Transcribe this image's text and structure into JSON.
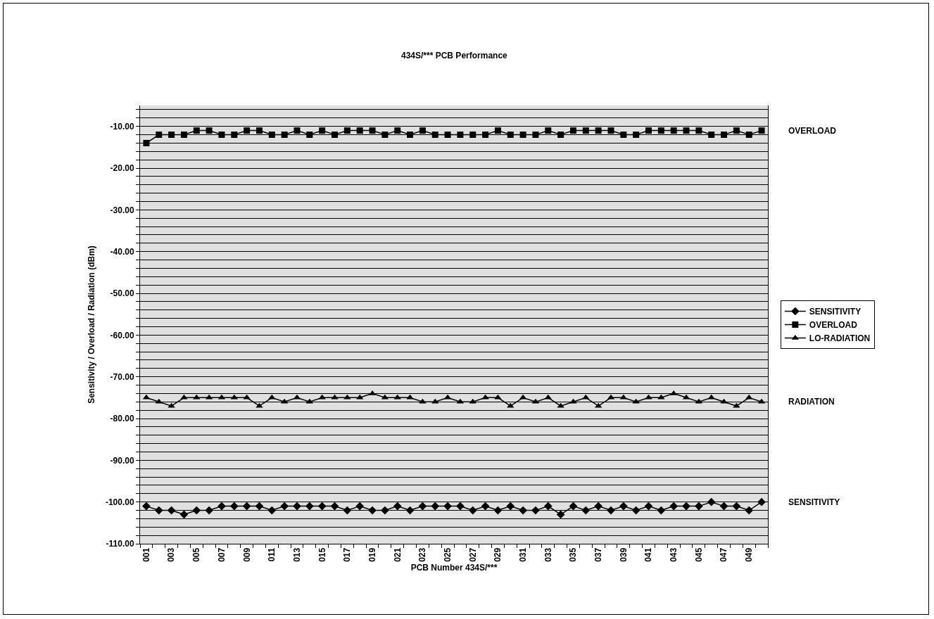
{
  "chart_data": {
    "type": "line",
    "title": "434S/*** PCB Performance",
    "xlabel": "PCB Number 434S/***",
    "ylabel": "Sensitivity / Overload / Radiation (dBm)",
    "categories": [
      "001",
      null,
      "003",
      null,
      "005",
      null,
      "007",
      null,
      "009",
      null,
      "011",
      null,
      "013",
      null,
      "015",
      null,
      "017",
      null,
      "019",
      null,
      "021",
      null,
      "023",
      null,
      "025",
      null,
      "027",
      null,
      "029",
      null,
      "031",
      null,
      "033",
      null,
      "035",
      null,
      "037",
      null,
      "039",
      null,
      "041",
      null,
      "043",
      null,
      "045",
      null,
      "047",
      null,
      "049",
      null
    ],
    "series": [
      {
        "name": "SENSITIVITY",
        "color": "#000000",
        "marker": "diamond",
        "values": [
          -101,
          -102,
          -102,
          -103,
          -102,
          -102,
          -101,
          -101,
          -101,
          -101,
          -102,
          -101,
          -101,
          -101,
          -101,
          -101,
          -102,
          -101,
          -102,
          -102,
          -101,
          -102,
          -101,
          -101,
          -101,
          -101,
          -102,
          -101,
          -102,
          -101,
          -102,
          -102,
          -101,
          -103,
          -101,
          -102,
          -101,
          -102,
          -101,
          -102,
          -101,
          -102,
          -101,
          -101,
          -101,
          -100,
          -101,
          -101,
          -102,
          -100
        ]
      },
      {
        "name": "OVERLOAD",
        "color": "#000000",
        "marker": "square",
        "values": [
          -14,
          -12,
          -12,
          -12,
          -11,
          -11,
          -12,
          -12,
          -11,
          -11,
          -12,
          -12,
          -11,
          -12,
          -11,
          -12,
          -11,
          -11,
          -11,
          -12,
          -11,
          -12,
          -11,
          -12,
          -12,
          -12,
          -12,
          -12,
          -11,
          -12,
          -12,
          -12,
          -11,
          -12,
          -11,
          -11,
          -11,
          -11,
          -12,
          -12,
          -11,
          -11,
          -11,
          -11,
          -11,
          -12,
          -12,
          -11,
          -12,
          -11
        ]
      },
      {
        "name": "LO-RADIATION",
        "color": "#000000",
        "marker": "triangle",
        "values": [
          -75,
          -76,
          -77,
          -75,
          -75,
          -75,
          -75,
          -75,
          -75,
          -77,
          -75,
          -76,
          -75,
          -76,
          -75,
          -75,
          -75,
          -75,
          -74,
          -75,
          -75,
          -75,
          -76,
          -76,
          -75,
          -76,
          -76,
          -75,
          -75,
          -77,
          -75,
          -76,
          -75,
          -77,
          -76,
          -75,
          -77,
          -75,
          -75,
          -76,
          -75,
          -75,
          -74,
          -75,
          -76,
          -75,
          -76,
          -77,
          -75,
          -76
        ]
      }
    ],
    "ylim": [
      -110,
      -5
    ],
    "yticks": [
      {
        "value": -110,
        "label": "-110.00"
      },
      {
        "value": -108,
        "label": null
      },
      {
        "value": -106,
        "label": null
      },
      {
        "value": -104,
        "label": null
      },
      {
        "value": -102,
        "label": null
      },
      {
        "value": -100,
        "label": "-100.00"
      },
      {
        "value": -98,
        "label": null
      },
      {
        "value": -96,
        "label": null
      },
      {
        "value": -94,
        "label": null
      },
      {
        "value": -92,
        "label": null
      },
      {
        "value": -90,
        "label": "-90.00"
      },
      {
        "value": -88,
        "label": null
      },
      {
        "value": -86,
        "label": null
      },
      {
        "value": -84,
        "label": null
      },
      {
        "value": -82,
        "label": null
      },
      {
        "value": -80,
        "label": "-80.00"
      },
      {
        "value": -78,
        "label": null
      },
      {
        "value": -76,
        "label": null
      },
      {
        "value": -74,
        "label": null
      },
      {
        "value": -72,
        "label": null
      },
      {
        "value": -70,
        "label": "-70.00"
      },
      {
        "value": -68,
        "label": null
      },
      {
        "value": -66,
        "label": null
      },
      {
        "value": -64,
        "label": null
      },
      {
        "value": -62,
        "label": null
      },
      {
        "value": -60,
        "label": "-60.00"
      },
      {
        "value": -58,
        "label": null
      },
      {
        "value": -56,
        "label": null
      },
      {
        "value": -54,
        "label": null
      },
      {
        "value": -52,
        "label": null
      },
      {
        "value": -50,
        "label": "-50.00"
      },
      {
        "value": -48,
        "label": null
      },
      {
        "value": -46,
        "label": null
      },
      {
        "value": -44,
        "label": null
      },
      {
        "value": -42,
        "label": null
      },
      {
        "value": -40,
        "label": "-40.00"
      },
      {
        "value": -38,
        "label": null
      },
      {
        "value": -36,
        "label": null
      },
      {
        "value": -34,
        "label": null
      },
      {
        "value": -32,
        "label": null
      },
      {
        "value": -30,
        "label": "-30.00"
      },
      {
        "value": -28,
        "label": null
      },
      {
        "value": -26,
        "label": null
      },
      {
        "value": -24,
        "label": null
      },
      {
        "value": -22,
        "label": null
      },
      {
        "value": -20,
        "label": "-20.00"
      },
      {
        "value": -18,
        "label": null
      },
      {
        "value": -16,
        "label": null
      },
      {
        "value": -14,
        "label": null
      },
      {
        "value": -12,
        "label": null
      },
      {
        "value": -10,
        "label": "-10.00"
      },
      {
        "value": -8,
        "label": null
      },
      {
        "value": -6,
        "label": null
      }
    ],
    "grid": "y",
    "legend": "right",
    "line_style": "solid",
    "annotations": [
      "OVERLOAD",
      "RADIATION",
      "SENSITIVITY"
    ]
  }
}
